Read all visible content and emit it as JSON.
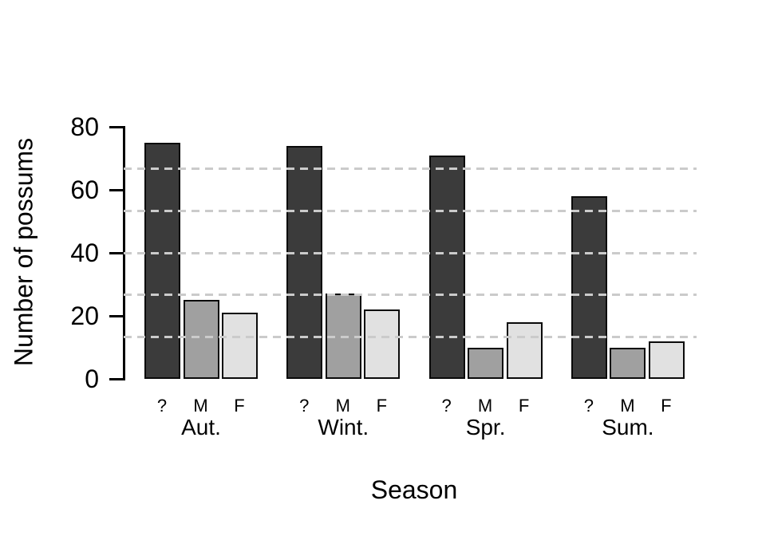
{
  "chart_data": {
    "type": "bar",
    "title": "",
    "xlabel": "Season",
    "ylabel": "Number of possums",
    "ylim": [
      0,
      80
    ],
    "yticks": [
      0,
      20,
      40,
      60,
      80
    ],
    "gridlines_y": [
      13.33,
      26.67,
      40,
      53.33,
      66.67
    ],
    "grid_style": "dashed",
    "grid_color": "#cbcbcb",
    "legend": "none",
    "categories": [
      "Aut.",
      "Wint.",
      "Spr.",
      "Sum."
    ],
    "group_bar_labels": [
      "?",
      "M",
      "F"
    ],
    "series": [
      {
        "name": "?",
        "color": "#3b3b3b",
        "values": [
          75,
          74,
          71,
          58
        ]
      },
      {
        "name": "M",
        "color": "#a0a0a0",
        "values": [
          25,
          27,
          10,
          10
        ]
      },
      {
        "name": "F",
        "color": "#e1e1e1",
        "values": [
          21,
          22,
          18,
          12
        ]
      }
    ],
    "bar_border_color": "#0a0a0a",
    "axis_color": "#000000",
    "background_color": "#ffffff"
  }
}
